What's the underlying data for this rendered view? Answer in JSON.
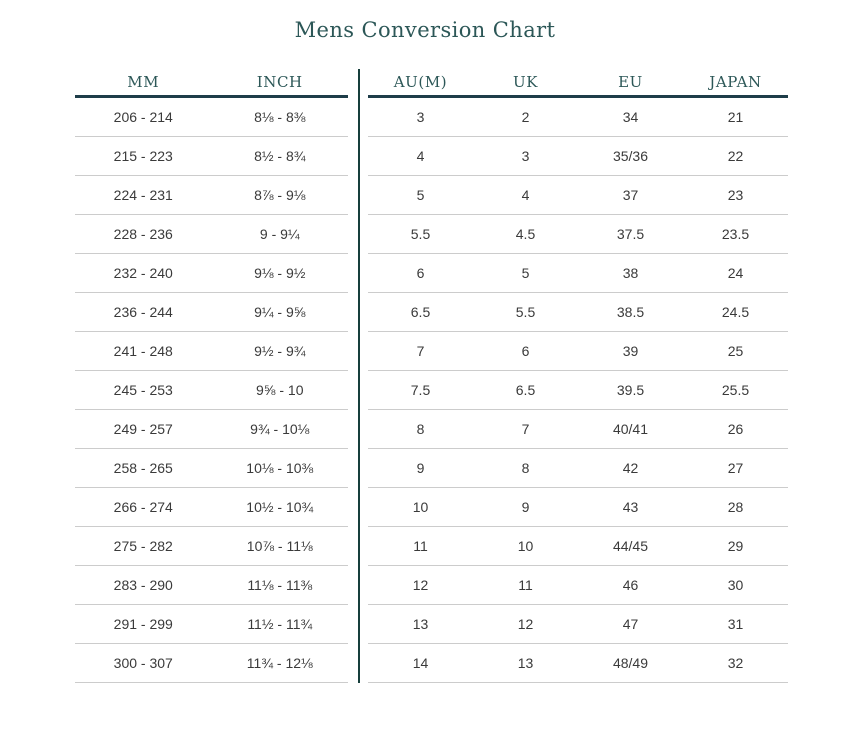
{
  "title": "Mens Conversion Chart",
  "colors": {
    "teal_text": "#2c5757",
    "header_underline": "#1e3d49",
    "vertical_divider": "#173f3c",
    "row_separator": "#cccccc",
    "data_text": "#3a3a3a",
    "background": "#ffffff"
  },
  "chart_data": {
    "type": "table",
    "title": "Mens Conversion Chart",
    "tables": [
      {
        "name": "foot-length",
        "headers": [
          "MM",
          "INCH"
        ],
        "rows": [
          [
            "206 - 214",
            "8⅛ - 8⅜"
          ],
          [
            "215 - 223",
            "8½ - 8¾"
          ],
          [
            "224 - 231",
            "8⅞ - 9⅛"
          ],
          [
            "228 - 236",
            "9 - 9¼"
          ],
          [
            "232 - 240",
            "9⅛ - 9½"
          ],
          [
            "236 - 244",
            "9¼ - 9⅝"
          ],
          [
            "241 - 248",
            "9½ - 9¾"
          ],
          [
            "245 - 253",
            "9⅝ - 10"
          ],
          [
            "249 - 257",
            "9¾ - 10⅛"
          ],
          [
            "258 - 265",
            "10⅛ - 10⅜"
          ],
          [
            "266 - 274",
            "10½ - 10¾"
          ],
          [
            "275 - 282",
            "10⅞ - 11⅛"
          ],
          [
            "283 - 290",
            "11⅛ - 11⅜"
          ],
          [
            "291 - 299",
            "11½ - 11¾"
          ],
          [
            "300 - 307",
            "11¾ - 12⅛"
          ]
        ]
      },
      {
        "name": "international-sizes",
        "headers": [
          "AU(M)",
          "UK",
          "EU",
          "JAPAN"
        ],
        "rows": [
          [
            "3",
            "2",
            "34",
            "21"
          ],
          [
            "4",
            "3",
            "35/36",
            "22"
          ],
          [
            "5",
            "4",
            "37",
            "23"
          ],
          [
            "5.5",
            "4.5",
            "37.5",
            "23.5"
          ],
          [
            "6",
            "5",
            "38",
            "24"
          ],
          [
            "6.5",
            "5.5",
            "38.5",
            "24.5"
          ],
          [
            "7",
            "6",
            "39",
            "25"
          ],
          [
            "7.5",
            "6.5",
            "39.5",
            "25.5"
          ],
          [
            "8",
            "7",
            "40/41",
            "26"
          ],
          [
            "9",
            "8",
            "42",
            "27"
          ],
          [
            "10",
            "9",
            "43",
            "28"
          ],
          [
            "11",
            "10",
            "44/45",
            "29"
          ],
          [
            "12",
            "11",
            "46",
            "30"
          ],
          [
            "13",
            "12",
            "47",
            "31"
          ],
          [
            "14",
            "13",
            "48/49",
            "32"
          ]
        ]
      }
    ]
  }
}
